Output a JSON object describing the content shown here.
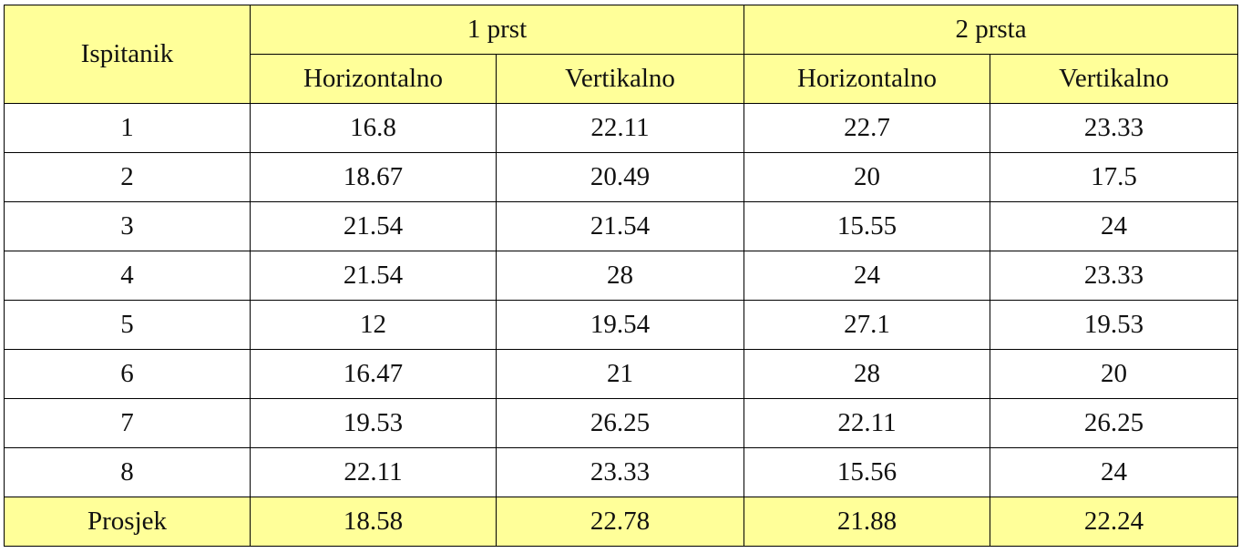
{
  "table": {
    "header": {
      "subject_label": "Ispitanik",
      "groups": [
        {
          "label": "1 prst",
          "sub": [
            "Horizontalno",
            "Vertikalno"
          ]
        },
        {
          "label": "2 prsta",
          "sub": [
            "Horizontalno",
            "Vertikalno"
          ]
        }
      ]
    },
    "rows": [
      [
        "1",
        "16.8",
        "22.11",
        "22.7",
        "23.33"
      ],
      [
        "2",
        "18.67",
        "20.49",
        "20",
        "17.5"
      ],
      [
        "3",
        "21.54",
        "21.54",
        "15.55",
        "24"
      ],
      [
        "4",
        "21.54",
        "28",
        "24",
        "23.33"
      ],
      [
        "5",
        "12",
        "19.54",
        "27.1",
        "19.53"
      ],
      [
        "6",
        "16.47",
        "21",
        "28",
        "20"
      ],
      [
        "7",
        "19.53",
        "26.25",
        "22.11",
        "26.25"
      ],
      [
        "8",
        "22.11",
        "23.33",
        "15.56",
        "24"
      ]
    ],
    "average": [
      "Prosjek",
      "18.58",
      "22.78",
      "21.88",
      "22.24"
    ]
  },
  "colors": {
    "header_fill": "#ffff99",
    "border": "#000000"
  }
}
